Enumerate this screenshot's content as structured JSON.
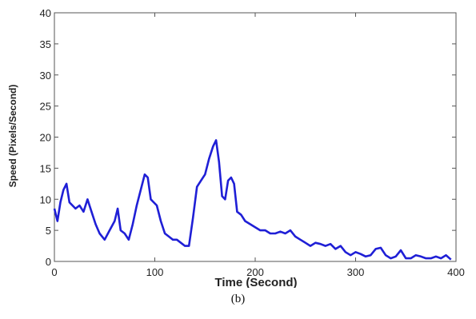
{
  "chart_data": {
    "type": "line",
    "title": "",
    "xlabel": "Time (Second)",
    "ylabel": "Speed (Pixels/Second)",
    "xlim": [
      0,
      400
    ],
    "ylim": [
      0,
      40
    ],
    "xticks": [
      0,
      100,
      200,
      300,
      400
    ],
    "yticks": [
      0,
      5,
      10,
      15,
      20,
      25,
      30,
      35,
      40
    ],
    "grid": false,
    "line_color": "#1f1fd6",
    "series": [
      {
        "x": [
          0,
          3,
          6,
          9,
          12,
          15,
          18,
          21,
          25,
          29,
          33,
          37,
          41,
          45,
          50,
          55,
          60,
          63,
          66,
          70,
          74,
          78,
          82,
          86,
          90,
          93,
          96,
          99,
          102,
          106,
          110,
          114,
          118,
          122,
          126,
          130,
          134,
          138,
          142,
          146,
          150,
          154,
          158,
          161,
          164,
          167,
          170,
          173,
          176,
          179,
          182,
          186,
          190,
          195,
          200,
          205,
          210,
          215,
          220,
          225,
          230,
          235,
          240,
          245,
          250,
          255,
          260,
          265,
          270,
          275,
          280,
          285,
          290,
          295,
          300,
          305,
          310,
          315,
          320,
          325,
          330,
          335,
          340,
          345,
          350,
          355,
          360,
          365,
          370,
          375,
          380,
          385,
          390,
          395
        ],
        "y": [
          8.5,
          6.5,
          9.5,
          11.5,
          12.5,
          9.5,
          9.0,
          8.5,
          9.0,
          8.0,
          10.0,
          8.0,
          6.0,
          4.5,
          3.5,
          5.0,
          6.5,
          8.5,
          5.0,
          4.5,
          3.5,
          6.0,
          9.0,
          11.5,
          14.0,
          13.5,
          10.0,
          9.5,
          9.0,
          6.5,
          4.5,
          4.0,
          3.5,
          3.5,
          3.0,
          2.5,
          2.5,
          7.0,
          12.0,
          13.0,
          14.0,
          16.5,
          18.5,
          19.5,
          16.0,
          10.5,
          10.0,
          13.0,
          13.5,
          12.5,
          8.0,
          7.5,
          6.5,
          6.0,
          5.5,
          5.0,
          5.0,
          4.5,
          4.5,
          4.8,
          4.5,
          5.0,
          4.0,
          3.5,
          3.0,
          2.5,
          3.0,
          2.8,
          2.5,
          2.8,
          2.0,
          2.5,
          1.5,
          1.0,
          1.5,
          1.2,
          0.8,
          1.0,
          2.0,
          2.2,
          1.0,
          0.5,
          0.8,
          1.8,
          0.5,
          0.5,
          1.0,
          0.8,
          0.5,
          0.5,
          0.8,
          0.5,
          1.0,
          0.3
        ]
      }
    ]
  },
  "caption": "(b)"
}
